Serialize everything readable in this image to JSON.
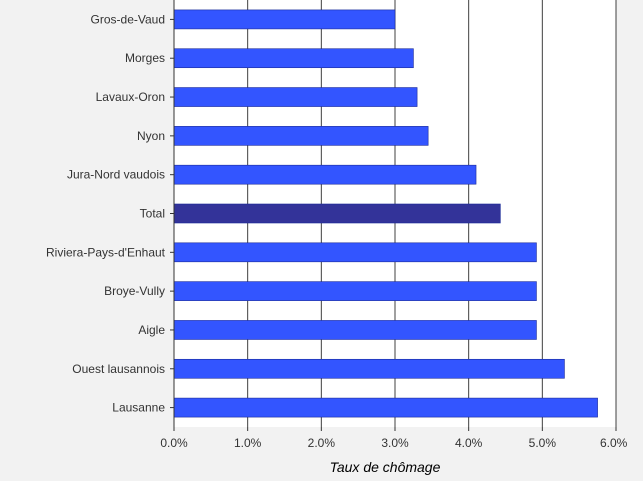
{
  "chart_data": {
    "type": "bar",
    "orientation": "horizontal",
    "title": "",
    "xlabel": "Taux de chômage",
    "ylabel": "",
    "categories": [
      "Gros-de-Vaud",
      "Morges",
      "Lavaux-Oron",
      "Nyon",
      "Jura-Nord vaudois",
      "Total",
      "Riviera-Pays-d'Enhaut",
      "Broye-Vully",
      "Aigle",
      "Ouest lausannois",
      "Lausanne"
    ],
    "values": [
      3.0,
      3.25,
      3.3,
      3.45,
      4.1,
      4.43,
      4.92,
      4.92,
      4.92,
      5.3,
      5.75
    ],
    "highlight_category": "Total",
    "xlim": [
      0,
      6
    ],
    "xticks": [
      "0.0%",
      "1.0%",
      "2.0%",
      "3.0%",
      "4.0%",
      "5.0%",
      "6.0%"
    ],
    "grid": "vertical",
    "legend": "none",
    "colors": {
      "bar": "#3355ff",
      "bar_highlight": "#333399",
      "background": "#f2f2f2",
      "plot_background": "#ffffff",
      "grid": "#404040"
    }
  }
}
